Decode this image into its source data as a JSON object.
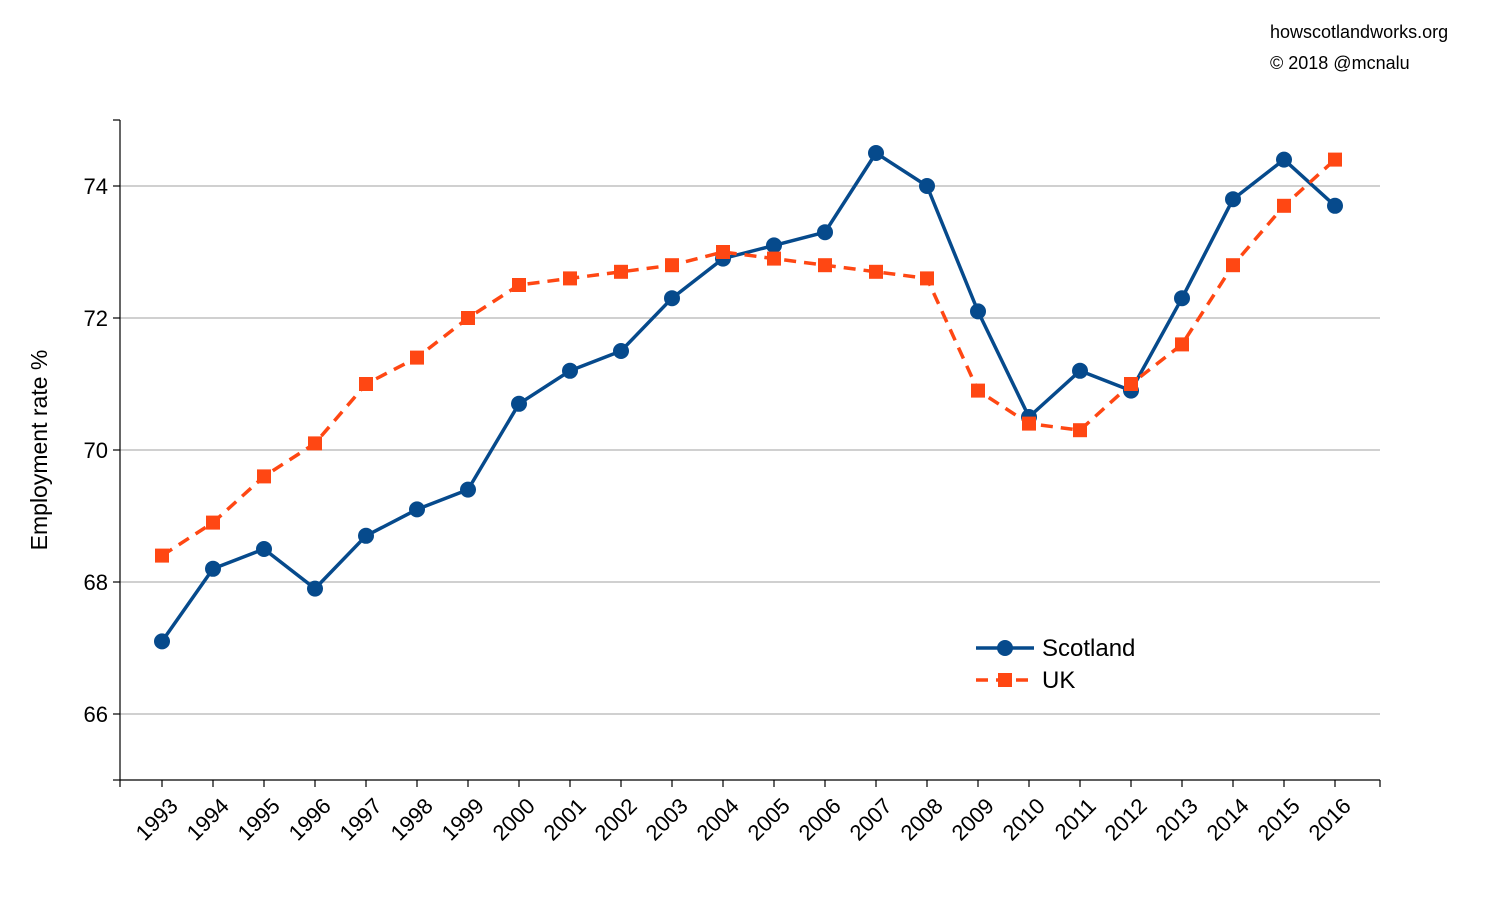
{
  "credits": {
    "line1": "howscotlandworks.org",
    "line2": "© 2018  @mcnalu"
  },
  "chart_data": {
    "type": "line",
    "title": "",
    "xlabel": "",
    "ylabel": "Employment rate %",
    "x": [
      "1993",
      "1994",
      "1995",
      "1996",
      "1997",
      "1998",
      "1999",
      "2000",
      "2001",
      "2002",
      "2003",
      "2004",
      "2005",
      "2006",
      "2007",
      "2008",
      "2009",
      "2010",
      "2011",
      "2012",
      "2013",
      "2014",
      "2015",
      "2016"
    ],
    "ylim": [
      65,
      75
    ],
    "yticks": [
      66,
      68,
      70,
      72,
      74
    ],
    "grid": true,
    "legend_position": "lower-right",
    "series": [
      {
        "name": "Scotland",
        "color": "#064A8C",
        "line_style": "solid",
        "marker": "circle",
        "values": [
          67.1,
          68.2,
          68.5,
          67.9,
          68.7,
          69.1,
          69.4,
          70.7,
          71.2,
          71.5,
          72.3,
          72.9,
          73.1,
          73.3,
          74.5,
          74.0,
          72.1,
          70.5,
          71.2,
          70.9,
          72.3,
          73.8,
          74.4,
          73.7
        ]
      },
      {
        "name": "UK",
        "color": "#FF4713",
        "line_style": "dashed",
        "marker": "square",
        "values": [
          68.4,
          68.9,
          69.6,
          70.1,
          71.0,
          71.4,
          72.0,
          72.5,
          72.6,
          72.7,
          72.8,
          73.0,
          72.9,
          72.8,
          72.7,
          72.6,
          70.9,
          70.4,
          70.3,
          71.0,
          71.6,
          72.8,
          73.7,
          74.4
        ]
      }
    ]
  }
}
